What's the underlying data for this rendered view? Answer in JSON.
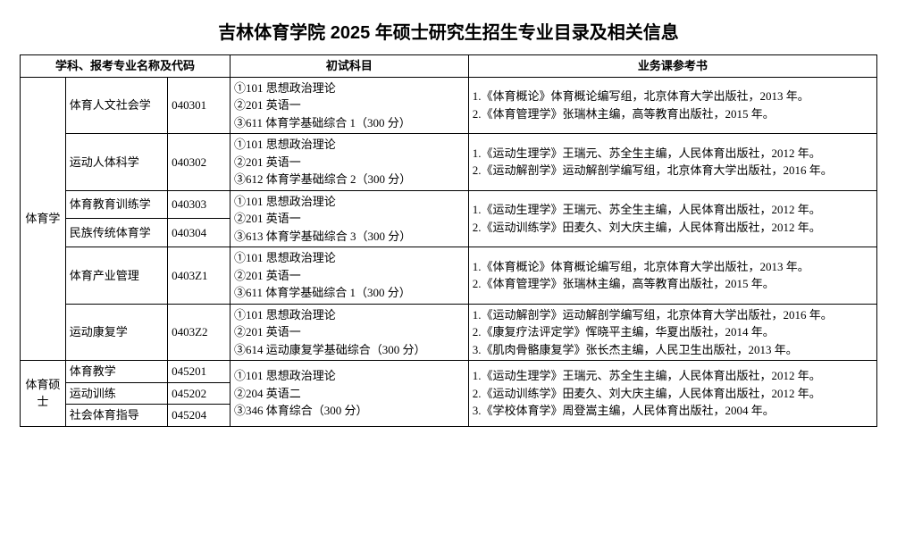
{
  "title": "吉林体育学院 2025 年硕士研究生招生专业目录及相关信息",
  "headers": {
    "h1": "学科、报考专业名称及代码",
    "h2": "初试科目",
    "h3": "业务课参考书"
  },
  "disc1": "体育学",
  "disc2": "体育硕士",
  "r1_major": "体育人文社会学",
  "r1_code": "040301",
  "r1_exam": "①101 思想政治理论\n②201 英语一\n③611 体育学基础综合 1（300 分）",
  "r1_ref": "1.《体育概论》体育概论编写组，北京体育大学出版社，2013 年。\n2.《体育管理学》张瑞林主编，高等教育出版社，2015 年。",
  "r2_major": "运动人体科学",
  "r2_code": "040302",
  "r2_exam": "①101 思想政治理论\n②201 英语一\n③612 体育学基础综合 2（300 分）",
  "r2_ref": "1.《运动生理学》王瑞元、苏全生主编，人民体育出版社，2012 年。\n2.《运动解剖学》运动解剖学编写组，北京体育大学出版社，2016 年。",
  "r3_major": "体育教育训练学",
  "r3_code": "040303",
  "r34_exam": "①101 思想政治理论\n②201 英语一\n③613 体育学基础综合 3（300 分）",
  "r34_ref": "1.《运动生理学》王瑞元、苏全生主编，人民体育出版社，2012 年。\n2.《运动训练学》田麦久、刘大庆主编，人民体育出版社，2012 年。",
  "r4_major": "民族传统体育学",
  "r4_code": "040304",
  "r5_major": "体育产业管理",
  "r5_code": "0403Z1",
  "r5_exam": "①101 思想政治理论\n②201 英语一\n③611 体育学基础综合 1（300 分）",
  "r5_ref": "1.《体育概论》体育概论编写组，北京体育大学出版社，2013 年。\n2.《体育管理学》张瑞林主编，高等教育出版社，2015 年。",
  "r6_major": "运动康复学",
  "r6_code": "0403Z2",
  "r6_exam": "①101 思想政治理论\n②201 英语一\n③614 运动康复学基础综合（300 分）",
  "r6_ref": "1.《运动解剖学》运动解剖学编写组，北京体育大学出版社，2016 年。\n2.《康复疗法评定学》恽晓平主编，华夏出版社，2014 年。\n3.《肌肉骨骼康复学》张长杰主编，人民卫生出版社，2013 年。",
  "r7_major": "体育教学",
  "r7_code": "045201",
  "r8_major": "运动训练",
  "r8_code": "045202",
  "r9_major": "社会体育指导",
  "r9_code": "045204",
  "r789_exam": "①101 思想政治理论\n②204 英语二\n③346 体育综合（300 分）",
  "r789_ref": "1.《运动生理学》王瑞元、苏全生主编，人民体育出版社，2012 年。\n2.《运动训练学》田麦久、刘大庆主编，人民体育出版社，2012 年。\n3.《学校体育学》周登嵩主编，人民体育出版社，2004 年。"
}
